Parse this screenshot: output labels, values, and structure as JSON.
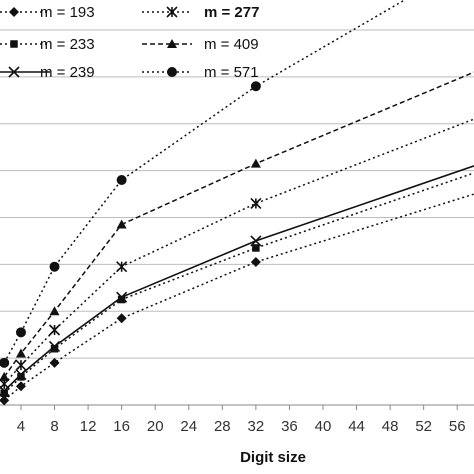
{
  "chart_data": {
    "type": "line",
    "title": "",
    "xlabel": "Digit size",
    "ylabel": "",
    "x_ticks": [
      "4",
      "8",
      "12",
      "16",
      "20",
      "24",
      "28",
      "32",
      "36",
      "40",
      "44",
      "48",
      "52",
      "56"
    ],
    "xlim": [
      1.5,
      58
    ],
    "ylim": [
      0,
      8
    ],
    "grid": "horizontal",
    "legend_position": "top-left",
    "series": [
      {
        "name": "m = 193",
        "marker": "diamond",
        "line": "dotted",
        "x": [
          2,
          4,
          8,
          16,
          32,
          58
        ],
        "y": [
          0.1,
          0.4,
          0.9,
          1.85,
          3.05,
          4.5
        ]
      },
      {
        "name": "m = 233",
        "marker": "square",
        "line": "dotted",
        "x": [
          2,
          4,
          8,
          16,
          32,
          58
        ],
        "y": [
          0.25,
          0.6,
          1.2,
          2.25,
          3.35,
          4.95
        ]
      },
      {
        "name": "m = 239",
        "marker": "x",
        "line": "solid",
        "x": [
          2,
          4,
          8,
          16,
          32,
          58
        ],
        "y": [
          0.3,
          0.65,
          1.25,
          2.3,
          3.5,
          5.1
        ]
      },
      {
        "name": "m = 277",
        "name_bold": true,
        "marker": "asterisk",
        "line": "dotted",
        "x": [
          2,
          4,
          8,
          16,
          32,
          58
        ],
        "y": [
          0.45,
          0.85,
          1.6,
          2.95,
          4.3,
          6.1
        ]
      },
      {
        "name": "m = 409",
        "marker": "triangle",
        "line": "dashed",
        "x": [
          2,
          4,
          8,
          16,
          32,
          58
        ],
        "y": [
          0.6,
          1.1,
          2.0,
          3.85,
          5.15,
          7.1
        ]
      },
      {
        "name": "m = 571",
        "marker": "circle",
        "line": "dotted",
        "x": [
          2,
          4,
          8,
          16,
          32,
          58
        ],
        "y": [
          0.9,
          1.55,
          2.95,
          4.8,
          6.8,
          9.5
        ]
      }
    ],
    "colors": {
      "line": "#111111",
      "grid": "#bdbdbd",
      "axis": "#888888"
    }
  }
}
